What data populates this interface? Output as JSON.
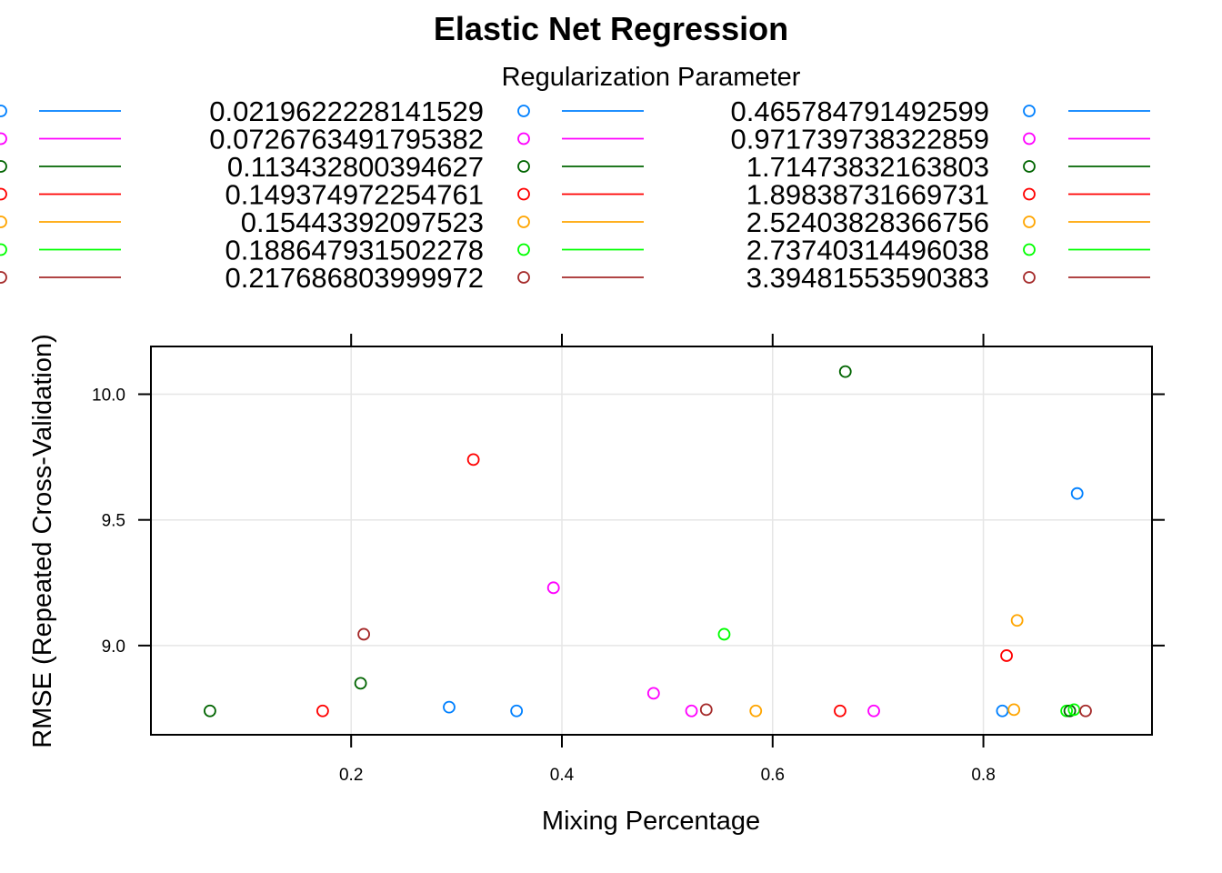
{
  "chart_data": {
    "type": "scatter",
    "title": "Elastic Net Regression",
    "xlabel": "Mixing Percentage",
    "ylabel": "RMSE (Repeated Cross-Validation)",
    "xlim": [
      0.01,
      0.96
    ],
    "ylim": [
      8.645,
      10.19
    ],
    "x_ticks": [
      0.2,
      0.4,
      0.6,
      0.8
    ],
    "x_tick_labels": [
      "0.2",
      "0.4",
      "0.6",
      "0.8"
    ],
    "y_ticks": [
      9.0,
      9.5,
      10.0
    ],
    "y_tick_labels": [
      "9.0",
      "9.5",
      "10.0"
    ],
    "grid": true,
    "legend": {
      "title": "Regularization Parameter",
      "placement": "top",
      "marker": "open-circle-and-line",
      "entries": [
        {
          "label": "0.0219622228141529",
          "color": "#0080ff"
        },
        {
          "label": "0.0726763491795382",
          "color": "#ff00ff"
        },
        {
          "label": "0.113432800394627",
          "color": "#006400"
        },
        {
          "label": "0.149374972254761",
          "color": "#ff0000"
        },
        {
          "label": "0.15443392097523",
          "color": "#ffa500"
        },
        {
          "label": "0.188647931502278",
          "color": "#00ff00"
        },
        {
          "label": "0.217686803999972",
          "color": "#a52a2a"
        },
        {
          "label": "0.465784791492599",
          "color": "#0080ff"
        },
        {
          "label": "0.971739738322859",
          "color": "#ff00ff"
        },
        {
          "label": "1.71473832163803",
          "color": "#006400"
        },
        {
          "label": "1.89838731669731",
          "color": "#ff0000"
        },
        {
          "label": "2.52403828366756",
          "color": "#ffa500"
        },
        {
          "label": "2.73740314496038",
          "color": "#00ff00"
        },
        {
          "label": "3.39481553590383",
          "color": "#a52a2a"
        }
      ]
    },
    "points": [
      {
        "x": 0.066,
        "y": 8.74,
        "color": "#006400"
      },
      {
        "x": 0.173,
        "y": 8.74,
        "color": "#ff0000"
      },
      {
        "x": 0.209,
        "y": 8.85,
        "color": "#006400"
      },
      {
        "x": 0.212,
        "y": 9.045,
        "color": "#a52a2a"
      },
      {
        "x": 0.293,
        "y": 8.755,
        "color": "#0080ff"
      },
      {
        "x": 0.316,
        "y": 9.74,
        "color": "#ff0000"
      },
      {
        "x": 0.357,
        "y": 8.74,
        "color": "#0080ff"
      },
      {
        "x": 0.392,
        "y": 9.23,
        "color": "#ff00ff"
      },
      {
        "x": 0.487,
        "y": 8.81,
        "color": "#ff00ff"
      },
      {
        "x": 0.523,
        "y": 8.74,
        "color": "#ff00ff"
      },
      {
        "x": 0.537,
        "y": 8.745,
        "color": "#a52a2a"
      },
      {
        "x": 0.554,
        "y": 9.045,
        "color": "#00ff00"
      },
      {
        "x": 0.584,
        "y": 8.74,
        "color": "#ffa500"
      },
      {
        "x": 0.664,
        "y": 8.74,
        "color": "#ff0000"
      },
      {
        "x": 0.669,
        "y": 10.09,
        "color": "#006400"
      },
      {
        "x": 0.696,
        "y": 8.74,
        "color": "#ff00ff"
      },
      {
        "x": 0.818,
        "y": 8.74,
        "color": "#0080ff"
      },
      {
        "x": 0.822,
        "y": 8.96,
        "color": "#ff0000"
      },
      {
        "x": 0.829,
        "y": 8.745,
        "color": "#ffa500"
      },
      {
        "x": 0.832,
        "y": 9.1,
        "color": "#ffa500"
      },
      {
        "x": 0.879,
        "y": 8.74,
        "color": "#00ff00"
      },
      {
        "x": 0.882,
        "y": 8.74,
        "color": "#006400"
      },
      {
        "x": 0.886,
        "y": 8.745,
        "color": "#00ff00"
      },
      {
        "x": 0.889,
        "y": 9.605,
        "color": "#0080ff"
      },
      {
        "x": 0.897,
        "y": 8.74,
        "color": "#a52a2a"
      }
    ]
  }
}
